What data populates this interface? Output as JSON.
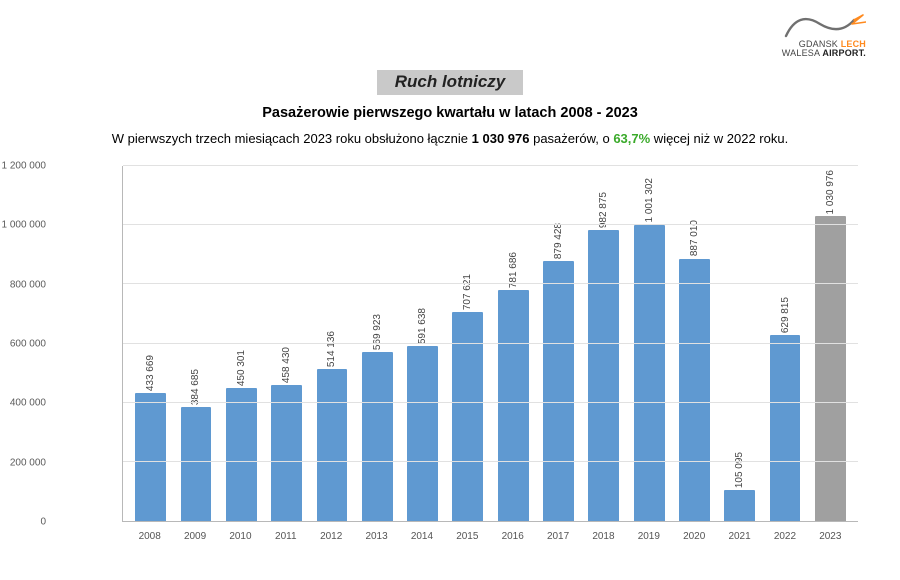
{
  "logo": {
    "line1_prefix": "GDANSK",
    "line1_accent": " LECH",
    "line2_prefix": "WALESA ",
    "line2_strong": "AIRPORT."
  },
  "header": {
    "title": "Ruch lotniczy",
    "subtitle": "Pasażerowie pierwszego kwartału w latach 2008 - 2023",
    "sentence_prefix": "W pierwszych trzech miesiącach 2023 roku obsłużono łącznie ",
    "sentence_value": "1 030 976",
    "sentence_mid": " pasażerów, o ",
    "sentence_pct": "63,7%",
    "sentence_suffix": " więcej niż w 2022 roku."
  },
  "chart": {
    "type": "bar",
    "ylim": [
      0,
      1200000
    ],
    "ytick_step": 200000,
    "yticks": [
      "0",
      "200 000",
      "400 000",
      "600 000",
      "800 000",
      "1 000 000",
      "1 200 000"
    ],
    "bar_color": "#5f99d1",
    "bar_color_highlight": "#a0a0a0",
    "grid_color": "#e1e1e1",
    "axis_color": "#b8b8b8",
    "background_color": "#ffffff",
    "label_fontsize": 10,
    "bar_width": 0.68,
    "categories": [
      "2008",
      "2009",
      "2010",
      "2011",
      "2012",
      "2013",
      "2014",
      "2015",
      "2016",
      "2017",
      "2018",
      "2019",
      "2020",
      "2021",
      "2022",
      "2023"
    ],
    "values": [
      433669,
      384685,
      450301,
      458430,
      514136,
      569923,
      591638,
      707621,
      781686,
      879428,
      982875,
      1001302,
      887010,
      105095,
      629815,
      1030976
    ],
    "value_labels": [
      "433 669",
      "384 685",
      "450 301",
      "458 430",
      "514 136",
      "569 923",
      "591 638",
      "707 621",
      "781 686",
      "879 428",
      "982 875",
      "1 001 302",
      "887 010",
      "105 095",
      "629 815",
      "1 030 976"
    ],
    "highlight_index": 15
  }
}
